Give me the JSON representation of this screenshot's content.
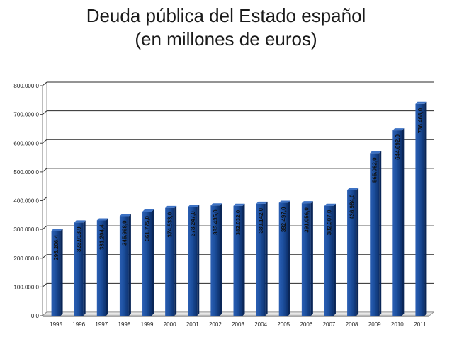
{
  "title_line1": "Deuda pública del Estado español",
  "title_line2": "(en millones de euros)",
  "chart_data": {
    "type": "bar",
    "title": "Deuda pública del Estado español (en millones de euros)",
    "xlabel": "",
    "ylabel": "",
    "ylim": [
      0,
      800000
    ],
    "y_ticks": [
      0,
      100000,
      200000,
      300000,
      400000,
      500000,
      600000,
      700000,
      800000
    ],
    "y_tick_labels": [
      "0,0",
      "100.000,0",
      "200.000,0",
      "300.000,0",
      "400.000,0",
      "500.000,0",
      "600.000,0",
      "700.000,0",
      "800.000,0"
    ],
    "grid": true,
    "categories": [
      "1995",
      "1996",
      "1997",
      "1998",
      "1999",
      "2000",
      "2001",
      "2002",
      "2003",
      "2004",
      "2005",
      "2006",
      "2007",
      "2008",
      "2009",
      "2010",
      "2011"
    ],
    "values": [
      295206.4,
      323913.9,
      331204.4,
      345968.0,
      361775.0,
      374533.0,
      378247.0,
      383435.0,
      382032.0,
      389142.0,
      392497.0,
      391056.0,
      382307.0,
      436984.0,
      565082.0,
      644692.0,
      736468.0
    ],
    "data_labels": [
      "295.206,4",
      "323.913,9",
      "331.204,4",
      "345.968,0",
      "361.775,0",
      "374.533,0",
      "378.247,0",
      "383.435,0",
      "382.032,0",
      "389.142,0",
      "392.497,0",
      "391.056,0",
      "382.307,0",
      "436.984,0",
      "565.082,0",
      "644.692,0",
      "736.468,0"
    ],
    "bar_color": "#1f4e99"
  }
}
